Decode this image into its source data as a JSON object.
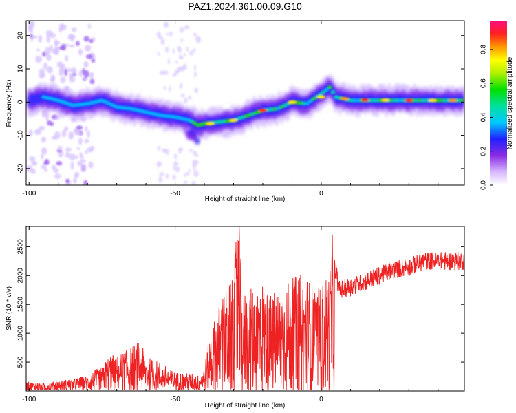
{
  "title": "PAZ1.2024.361.00.09.G10",
  "chart_data": [
    {
      "type": "heatmap",
      "xlabel": "Height of straight line (km)",
      "ylabel": "Frequency (Hz)",
      "xlim": [
        -101,
        49
      ],
      "ylim": [
        -25,
        24.5
      ],
      "xticks": [
        -100,
        -50,
        0
      ],
      "yticks": [
        -20,
        -10,
        0,
        10,
        20
      ],
      "colorbar": {
        "label": "Normalized spectral amplitude",
        "range": [
          0,
          0.97
        ],
        "ticks": [
          0.0,
          0.2,
          0.4,
          0.6,
          0.8
        ]
      },
      "ridge": {
        "description_points_x": [
          -100,
          -95,
          -90,
          -85,
          -80,
          -75,
          -70,
          -65,
          -60,
          -55,
          -50,
          -45,
          -42,
          -40,
          -35,
          -30,
          -25,
          -20,
          -15,
          -10,
          -5,
          0,
          3,
          5,
          10,
          15,
          20,
          25,
          30,
          35,
          40,
          45,
          49
        ],
        "description_points_y": [
          0.5,
          1.5,
          0.5,
          -1.0,
          -0.5,
          0.5,
          -1.5,
          -2.0,
          -3.0,
          -4.0,
          -4.5,
          -5.5,
          -7.0,
          -6.5,
          -6.0,
          -5.5,
          -4.0,
          -2.5,
          -2.0,
          0.0,
          -0.5,
          2.5,
          4.5,
          1.5,
          0.5,
          0.5,
          0.5,
          0.5,
          0.5,
          0.5,
          0.5,
          0.5,
          0.5
        ],
        "peak_amplitude_x": [
          -38,
          -30,
          -20,
          -10,
          0,
          8,
          15,
          22,
          30,
          38,
          45
        ],
        "peak_amplitude_y": [
          -6.5,
          -5.5,
          -2.5,
          0.0,
          1.5,
          1.0,
          0.6,
          0.6,
          0.5,
          0.5,
          0.5
        ]
      }
    },
    {
      "type": "line",
      "xlabel": "Height of straight line (km)",
      "ylabel": "SNR (10 * v/v)",
      "xlim": [
        -101,
        49
      ],
      "ylim": [
        0,
        2850
      ],
      "xticks": [
        -100,
        -50,
        0
      ],
      "yticks": [
        500,
        1000,
        1500,
        2000,
        2500
      ],
      "color": "#ee2222",
      "series": [
        {
          "x": [
            -101,
            -95,
            -90,
            -85,
            -80,
            -75,
            -72,
            -70,
            -65,
            -62,
            -60,
            -55,
            -50,
            -45,
            -42,
            -40,
            -38,
            -35,
            -32,
            -30,
            -28.5,
            -27,
            -25,
            -22,
            -20,
            -18,
            -15,
            -12,
            -10,
            -8,
            -5,
            -2,
            0,
            3,
            4,
            6,
            10,
            15,
            20,
            25,
            30,
            35,
            40,
            45,
            49
          ],
          "y": [
            150,
            130,
            160,
            200,
            250,
            400,
            600,
            550,
            700,
            800,
            550,
            450,
            300,
            280,
            250,
            400,
            900,
            1300,
            1600,
            1700,
            2850,
            1600,
            1500,
            1650,
            1700,
            1450,
            1550,
            1650,
            1700,
            1750,
            1800,
            1500,
            1600,
            1900,
            2450,
            1750,
            1800,
            1900,
            2000,
            2100,
            2150,
            2250,
            2250,
            2250,
            2250
          ]
        }
      ]
    }
  ]
}
